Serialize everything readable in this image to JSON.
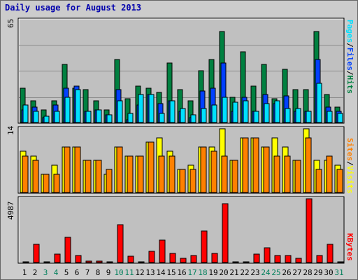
{
  "chart_data": {
    "title": "Daily usage for August 2013",
    "type": "bar",
    "x_labels": [
      "1",
      "2",
      "3",
      "4",
      "5",
      "6",
      "7",
      "8",
      "9",
      "10",
      "11",
      "12",
      "13",
      "14",
      "15",
      "16",
      "17",
      "18",
      "19",
      "20",
      "21",
      "22",
      "23",
      "24",
      "25",
      "26",
      "27",
      "28",
      "29",
      "30",
      "31"
    ],
    "weekend_days": [
      3,
      4,
      10,
      11,
      17,
      18,
      24,
      25,
      31
    ],
    "colors": {
      "hits": "#008040",
      "files": "#0040ff",
      "pages": "#00e0ff",
      "visits": "#ffff00",
      "sites": "#ff8000",
      "kbytes": "#ff0000",
      "weekend_label": "#00805c",
      "background": "#cccccc",
      "plot_bg": "#c0c0c0"
    },
    "panels": [
      {
        "name": "requests",
        "ymax_label": "65",
        "ymax": 65,
        "right_label": [
          "Pages",
          "Files",
          "Hits"
        ],
        "series": [
          {
            "name": "Hits",
            "values": [
              22,
              14,
              8,
              14,
              37,
              22,
              21,
              14,
              8,
              40,
              15,
              23,
              22,
              19,
              38,
              21,
              14,
              33,
              40,
              58,
              16,
              45,
              23,
              37,
              15,
              34,
              21,
              21,
              58,
              18,
              10
            ]
          },
          {
            "name": "Files",
            "values": [
              8,
              10,
              3,
              11,
              22,
              23,
              7,
              8,
              5,
              21,
              2,
              11,
              18,
              12,
              14,
              7,
              3,
              20,
              22,
              38,
              7,
              16,
              7,
              18,
              12,
              17,
              7,
              7,
              40,
              10,
              7
            ]
          },
          {
            "name": "Pages",
            "values": [
              11,
              7,
              4,
              7,
              16,
              21,
              7,
              8,
              5,
              14,
              6,
              18,
              18,
              6,
              14,
              9,
              5,
              9,
              11,
              16,
              13,
              14,
              7,
              12,
              14,
              9,
              9,
              7,
              25,
              7,
              6
            ]
          }
        ]
      },
      {
        "name": "visitors",
        "ymax_label": "14",
        "ymax": 14,
        "right_label": [
          "Sites",
          "Visits"
        ],
        "series": [
          {
            "name": "Visits",
            "values": [
              9,
              8,
              4,
              6,
              10,
              10,
              7,
              7,
              4,
              10,
              8,
              8,
              11,
              12,
              9,
              5,
              6,
              10,
              10,
              14,
              7,
              12,
              12,
              10,
              12,
              10,
              7,
              14,
              7,
              7,
              6
            ]
          },
          {
            "name": "Sites",
            "values": [
              8,
              7,
              4,
              4,
              10,
              10,
              7,
              7,
              5,
              10,
              8,
              8,
              11,
              8,
              8,
              5,
              5,
              10,
              9,
              8,
              7,
              12,
              12,
              10,
              8,
              8,
              7,
              12,
              5,
              8,
              5
            ]
          }
        ]
      },
      {
        "name": "volume",
        "ymax_label": "4987",
        "ymax": 4987,
        "right_label": [
          "KBytes"
        ],
        "series": [
          {
            "name": "KBytes",
            "values": [
              0,
              1400,
              50,
              650,
              1950,
              550,
              110,
              110,
              60,
              2950,
              470,
              50,
              880,
              1760,
              720,
              320,
              550,
              2450,
              720,
              4600,
              80,
              80,
              660,
              1150,
              570,
              570,
              320,
              4987,
              570,
              1400,
              70
            ]
          }
        ]
      }
    ]
  }
}
